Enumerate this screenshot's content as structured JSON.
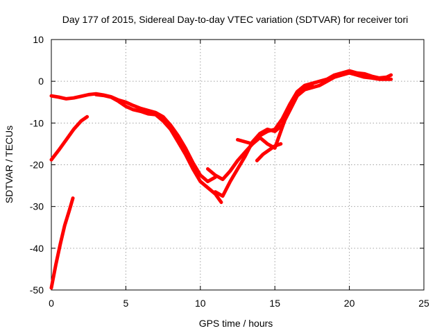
{
  "chart_data": {
    "type": "line",
    "title": "Day 177 of 2015, Sidereal Day-to-day VTEC variation (SDTVAR) for receiver tori",
    "xlabel": "GPS time / hours",
    "ylabel": "SDTVAR / TECUs",
    "xlim": [
      0,
      25
    ],
    "ylim": [
      -50,
      10
    ],
    "xticks": [
      0,
      5,
      10,
      15,
      20,
      25
    ],
    "yticks": [
      -50,
      -40,
      -30,
      -20,
      -10,
      0,
      10
    ],
    "xtick_labels": [
      "0",
      "5",
      "10",
      "15",
      "20",
      "25"
    ],
    "ytick_labels": [
      "-50",
      "-40",
      "-30",
      "-20",
      "-10",
      "0",
      "10"
    ],
    "grid": true,
    "legend": "none",
    "color": "#ff0000",
    "series": [
      {
        "name": "segment-1",
        "x": [
          0.0,
          0.3,
          0.6,
          0.9,
          1.2,
          1.45
        ],
        "y": [
          -49.5,
          -44.0,
          -39.0,
          -34.5,
          -31.0,
          -28.0
        ]
      },
      {
        "name": "segment-2",
        "x": [
          0.0,
          0.5,
          1.0,
          1.5,
          2.0,
          2.4
        ],
        "y": [
          -18.8,
          -16.5,
          -14.0,
          -11.5,
          -9.5,
          -8.5
        ]
      },
      {
        "name": "segment-3",
        "x": [
          0.0,
          0.5,
          1.0,
          1.5,
          2.0,
          2.5,
          3.0,
          3.5,
          4.0,
          4.5,
          5.0,
          5.5,
          6.0,
          6.5,
          7.0,
          7.5,
          8.0,
          8.5,
          9.0,
          9.5,
          10.0,
          10.5,
          11.0
        ],
        "y": [
          -3.5,
          -3.8,
          -4.2,
          -4.0,
          -3.6,
          -3.2,
          -3.0,
          -3.3,
          -3.7,
          -4.5,
          -5.0,
          -5.8,
          -6.5,
          -7.0,
          -7.5,
          -8.5,
          -10.5,
          -13.0,
          -16.0,
          -19.5,
          -22.5,
          -24.0,
          -23.0
        ]
      },
      {
        "name": "segment-4",
        "x": [
          3.0,
          3.5,
          4.0,
          4.5,
          5.0,
          5.5,
          6.0,
          6.5,
          7.0,
          7.5,
          8.0,
          8.5,
          9.0,
          9.5,
          10.0,
          10.5,
          11.0,
          11.4
        ],
        "y": [
          -3.2,
          -3.4,
          -3.8,
          -4.8,
          -6.0,
          -6.8,
          -7.2,
          -7.8,
          -8.0,
          -9.5,
          -11.5,
          -14.5,
          -17.5,
          -21.0,
          -24.0,
          -25.5,
          -27.0,
          -29.0
        ]
      },
      {
        "name": "segment-5",
        "x": [
          10.5,
          11.0,
          11.5,
          12.0,
          12.5,
          13.0,
          13.5,
          14.0,
          14.5,
          15.0,
          15.5,
          16.0,
          16.5,
          17.0,
          17.5,
          18.0,
          18.5,
          19.0,
          19.5,
          20.0,
          20.5,
          21.0,
          21.5,
          22.0,
          22.5,
          22.8
        ],
        "y": [
          -21.0,
          -22.5,
          -23.5,
          -21.5,
          -19.0,
          -17.0,
          -15.0,
          -13.0,
          -12.0,
          -11.5,
          -9.0,
          -5.5,
          -2.5,
          -1.0,
          -0.5,
          0.0,
          0.5,
          1.5,
          2.0,
          2.5,
          2.0,
          1.8,
          1.2,
          0.8,
          1.0,
          1.5
        ]
      },
      {
        "name": "segment-6",
        "x": [
          11.0,
          11.5,
          12.0,
          12.5,
          13.0,
          13.5,
          14.0,
          14.5,
          15.0,
          15.5,
          16.0,
          16.5,
          17.0,
          17.5,
          18.0,
          18.5,
          19.0,
          19.5,
          20.0,
          20.5,
          21.0,
          21.5,
          22.0,
          22.5,
          22.8
        ],
        "y": [
          -26.5,
          -27.5,
          -24.0,
          -21.0,
          -18.0,
          -14.5,
          -12.5,
          -11.5,
          -12.0,
          -10.5,
          -7.0,
          -3.5,
          -2.0,
          -1.5,
          -1.0,
          0.0,
          1.0,
          1.5,
          2.0,
          1.5,
          1.0,
          0.8,
          0.5,
          0.5,
          0.5
        ]
      },
      {
        "name": "segment-7",
        "x": [
          12.5,
          13.0,
          13.5,
          14.0,
          14.5,
          15.0,
          15.5,
          16.0,
          16.5,
          17.0,
          17.5
        ],
        "y": [
          -14.0,
          -14.5,
          -15.0,
          -13.5,
          -15.0,
          -16.0,
          -11.0,
          -6.0,
          -3.0,
          -1.5,
          -1.0
        ]
      },
      {
        "name": "segment-8",
        "x": [
          13.8,
          14.2,
          14.6,
          15.0,
          15.4
        ],
        "y": [
          -19.0,
          -17.5,
          -16.5,
          -15.5,
          -15.0
        ]
      }
    ]
  }
}
